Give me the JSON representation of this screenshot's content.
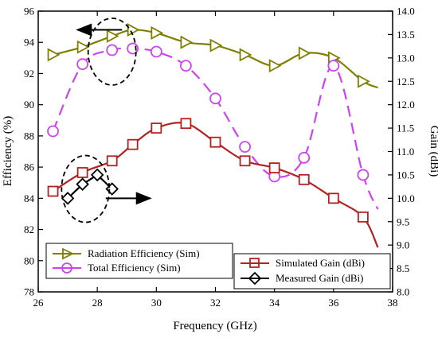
{
  "chart_data": {
    "type": "line",
    "xlabel": "Frequency (GHz)",
    "ylabel_left": "Efficiency (%)",
    "ylabel_right": "Gain (dBi)",
    "xlim": [
      26,
      38
    ],
    "ylim_left": [
      78,
      96
    ],
    "ylim_right": [
      8.0,
      14.0
    ],
    "x_ticks": [
      "26",
      "28",
      "30",
      "32",
      "34",
      "36",
      "38"
    ],
    "y_ticks_left": [
      "78",
      "80",
      "82",
      "84",
      "86",
      "88",
      "90",
      "92",
      "94",
      "96"
    ],
    "y_ticks_right": [
      "8.0",
      "8.5",
      "9.0",
      "9.5",
      "10.0",
      "10.5",
      "11.0",
      "11.5",
      "12.0",
      "12.5",
      "13.0",
      "13.5",
      "14.0"
    ],
    "grid": false,
    "series": [
      {
        "name": "Radiation Efficiency (Sim)",
        "axis": "left",
        "color": "#808000",
        "marker": "triangle-right",
        "line": "solid",
        "x": [
          26.5,
          27.5,
          28.5,
          29.2,
          30,
          31,
          32,
          33,
          34,
          35,
          36,
          37
        ],
        "y": [
          93.2,
          93.7,
          94.4,
          94.8,
          94.6,
          94.0,
          93.8,
          93.2,
          92.5,
          93.3,
          93.0,
          91.5
        ],
        "curve": [
          [
            26.5,
            93.2
          ],
          [
            27.5,
            93.7
          ],
          [
            28.5,
            94.4
          ],
          [
            29.2,
            94.8
          ],
          [
            30,
            94.6
          ],
          [
            31,
            94.0
          ],
          [
            32,
            93.8
          ],
          [
            33,
            93.2
          ],
          [
            34,
            92.5
          ],
          [
            35,
            93.3
          ],
          [
            36,
            93.0
          ],
          [
            37,
            91.5
          ],
          [
            37.5,
            91.1
          ]
        ]
      },
      {
        "name": "Total Efficiency (Sim)",
        "axis": "left",
        "color": "#cc44ee",
        "marker": "circle",
        "line": "dashed",
        "x": [
          26.5,
          27.5,
          28.5,
          29.2,
          30,
          31,
          32,
          33,
          34,
          35,
          36,
          37
        ],
        "y": [
          88.3,
          92.6,
          93.5,
          93.6,
          93.4,
          92.5,
          90.4,
          87.3,
          85.4,
          86.6,
          92.5,
          85.5
        ],
        "curve": [
          [
            26.5,
            88.3
          ],
          [
            27.5,
            92.6
          ],
          [
            28.5,
            93.5
          ],
          [
            29.2,
            93.6
          ],
          [
            30,
            93.4
          ],
          [
            31,
            92.5
          ],
          [
            32,
            90.4
          ],
          [
            33,
            87.3
          ],
          [
            34,
            85.4
          ],
          [
            35,
            86.6
          ],
          [
            36,
            92.5
          ],
          [
            37,
            85.5
          ],
          [
            37.5,
            83.3
          ]
        ]
      },
      {
        "name": "Simulated Gain (dBi)",
        "axis": "right",
        "color": "#b22222",
        "marker": "square",
        "line": "solid",
        "x": [
          26.5,
          27.5,
          28.5,
          29.2,
          30,
          31,
          32,
          33,
          34,
          35,
          36,
          37
        ],
        "y": [
          10.15,
          10.55,
          10.8,
          11.15,
          11.5,
          11.6,
          11.2,
          10.8,
          10.65,
          10.4,
          10.0,
          9.6
        ],
        "curve": [
          [
            26.5,
            10.15
          ],
          [
            27.5,
            10.55
          ],
          [
            28.5,
            10.8
          ],
          [
            29.2,
            11.15
          ],
          [
            30,
            11.5
          ],
          [
            31,
            11.6
          ],
          [
            32,
            11.2
          ],
          [
            33,
            10.8
          ],
          [
            34,
            10.65
          ],
          [
            35,
            10.4
          ],
          [
            36,
            10.0
          ],
          [
            37,
            9.6
          ],
          [
            37.5,
            8.95
          ]
        ]
      },
      {
        "name": "Measured Gain (dBi)",
        "axis": "right",
        "color": "#000000",
        "marker": "diamond",
        "line": "solid",
        "x": [
          27,
          27.5,
          28,
          28.5
        ],
        "y": [
          10.0,
          10.3,
          10.5,
          10.2
        ]
      }
    ],
    "annotations": {
      "left_axis_arrow_at": [
        29.0,
        94.8
      ],
      "right_axis_arrow_at": [
        28.5,
        10.0
      ],
      "ellipse_left_center": [
        28.5,
        93.4
      ],
      "ellipse_right_center": [
        27.6,
        10.2
      ]
    },
    "legend_top": [
      "Radiation Efficiency (Sim)",
      "Total Efficiency (Sim)"
    ],
    "legend_bottom": [
      "Simulated Gain (dBi)",
      "Measured Gain (dBi)"
    ]
  }
}
